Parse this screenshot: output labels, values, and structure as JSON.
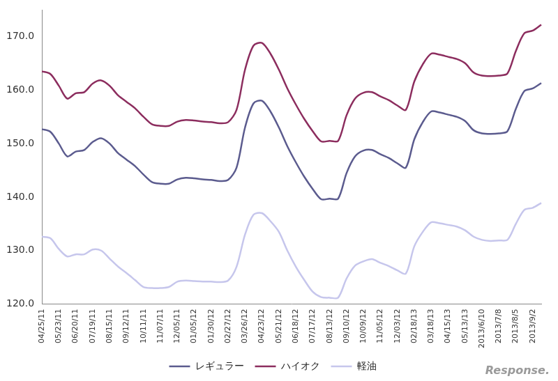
{
  "chart_data": {
    "type": "line",
    "categories": [
      "04/25/11",
      null,
      "05/23/11",
      null,
      "06/20/11",
      null,
      "07/19/11",
      null,
      "08/15/11",
      null,
      "09/12/11",
      null,
      "10/11/11",
      null,
      "11/07/11",
      null,
      "12/05/11",
      null,
      "01/05/12",
      null,
      "01/30/12",
      null,
      "02/27/12",
      null,
      "03/26/12",
      null,
      "04/23/12",
      null,
      "05/21/12",
      null,
      "06/18/12",
      null,
      "07/17/12",
      null,
      "08/13/12",
      null,
      "09/10/12",
      null,
      "10/09/12",
      null,
      "11/05/12",
      null,
      "12/03/12",
      null,
      "02/18/13",
      null,
      "03/18/13",
      null,
      "04/15/13",
      null,
      "05/13/13",
      null,
      "2013/6/10",
      null,
      "2013/7/8",
      null,
      "2013/8/5",
      null,
      "2013/9/2",
      null
    ],
    "series": [
      {
        "name": "レギュラー",
        "color": "#5b5b8e",
        "values": [
          152.7,
          152.2,
          150.0,
          147.6,
          148.5,
          148.8,
          150.3,
          151.0,
          150.0,
          148.2,
          147.0,
          145.8,
          144.2,
          142.8,
          142.5,
          142.5,
          143.3,
          143.6,
          143.5,
          143.3,
          143.2,
          143.0,
          143.2,
          145.5,
          153.0,
          157.5,
          158.0,
          156.0,
          153.0,
          149.5,
          146.5,
          143.8,
          141.5,
          139.6,
          139.7,
          139.7,
          144.5,
          147.6,
          148.7,
          148.8,
          148.0,
          147.3,
          146.3,
          145.5,
          150.8,
          154.0,
          156.0,
          155.8,
          155.4,
          155.0,
          154.2,
          152.5,
          151.9,
          151.8,
          151.9,
          152.3,
          156.5,
          159.8,
          160.3,
          161.3
        ]
      },
      {
        "name": "ハイオク",
        "color": "#8c2d5e",
        "values": [
          163.5,
          163.0,
          160.8,
          158.4,
          159.4,
          159.6,
          161.2,
          161.8,
          160.8,
          159.0,
          157.8,
          156.6,
          155.0,
          153.6,
          153.3,
          153.3,
          154.1,
          154.4,
          154.3,
          154.1,
          154.0,
          153.8,
          154.0,
          156.3,
          163.8,
          168.3,
          168.8,
          166.8,
          163.8,
          160.3,
          157.3,
          154.6,
          152.3,
          150.4,
          150.5,
          150.5,
          155.3,
          158.4,
          159.5,
          159.6,
          158.8,
          158.1,
          157.1,
          156.3,
          161.6,
          164.8,
          166.8,
          166.6,
          166.2,
          165.8,
          165.0,
          163.3,
          162.7,
          162.6,
          162.7,
          163.1,
          167.3,
          170.6,
          171.1,
          172.2
        ]
      },
      {
        "name": "軽油",
        "color": "#c6c6ec",
        "values": [
          132.6,
          132.3,
          130.3,
          128.9,
          129.3,
          129.3,
          130.2,
          130.0,
          128.5,
          127.0,
          125.8,
          124.5,
          123.2,
          123.0,
          123.0,
          123.2,
          124.2,
          124.4,
          124.3,
          124.2,
          124.2,
          124.1,
          124.4,
          127.0,
          133.0,
          136.7,
          137.0,
          135.5,
          133.5,
          130.0,
          127.0,
          124.5,
          122.3,
          121.3,
          121.2,
          121.2,
          124.8,
          127.2,
          128.0,
          128.4,
          127.7,
          127.1,
          126.3,
          125.7,
          130.8,
          133.5,
          135.3,
          135.1,
          134.8,
          134.5,
          133.8,
          132.6,
          132.0,
          131.8,
          131.9,
          132.0,
          135.0,
          137.6,
          138.0,
          138.9
        ]
      }
    ],
    "ylim": [
      120,
      175
    ],
    "yticks": [
      {
        "value": 120,
        "label": "120.0"
      },
      {
        "value": 130,
        "label": "130.0"
      },
      {
        "value": 140,
        "label": "140.0"
      },
      {
        "value": 150,
        "label": "150.0"
      },
      {
        "value": 160,
        "label": "160.0"
      },
      {
        "value": 170,
        "label": "170.0"
      }
    ],
    "grid": false,
    "legend": "bottom",
    "annotations": [
      "Response."
    ]
  }
}
